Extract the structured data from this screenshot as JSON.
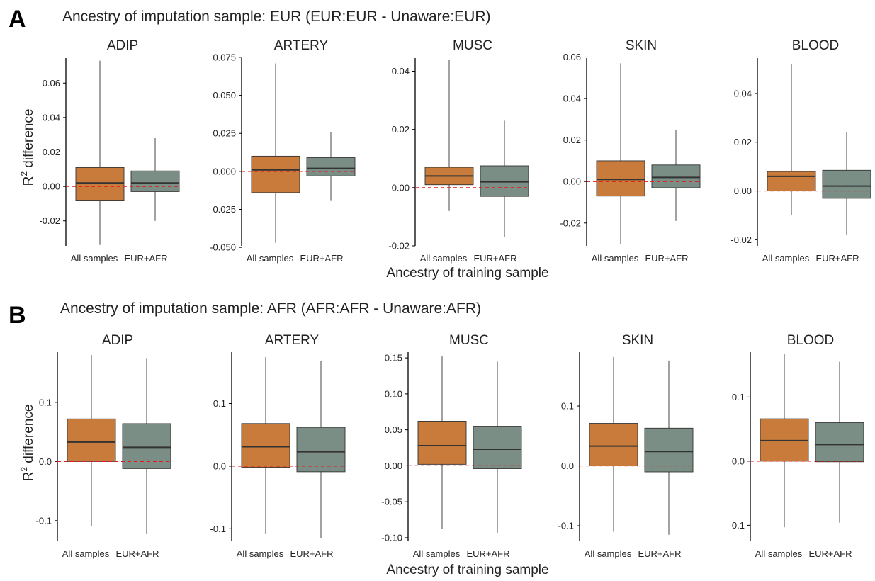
{
  "panels": [
    {
      "letter": "A",
      "title": "Ancestry of imputation sample: EUR (EUR:EUR - Unaware:EUR)",
      "ylabel_main": "R",
      "ylabel_sup": "2",
      "ylabel_rest": " difference",
      "xlabel": "Ancestry of training sample"
    },
    {
      "letter": "B",
      "title": "Ancestry of imputation sample: AFR (AFR:AFR - Unaware:AFR)",
      "ylabel_main": "R",
      "ylabel_sup": "2",
      "ylabel_rest": " difference",
      "xlabel": "Ancestry of training sample"
    }
  ],
  "colors": {
    "all_samples": "#c87b3a",
    "eur_afr": "#7a8e85",
    "median": "#333333",
    "zero_line": "#e8161a",
    "axis": "#000000",
    "text": "#222222"
  },
  "chart_data": [
    {
      "type": "box",
      "panel": "A",
      "title": "ADIP",
      "categories": [
        "All samples",
        "EUR+AFR"
      ],
      "yticks": [
        -0.02,
        0.0,
        0.02,
        0.04,
        0.06
      ],
      "tick_labels": [
        "-0.02",
        "0.00",
        "0.02",
        "0.04",
        "0.06"
      ],
      "ylim": [
        -0.0345,
        0.0745
      ],
      "boxes": [
        {
          "whisker_low": -0.034,
          "q1": -0.008,
          "median": 0.002,
          "q3": 0.011,
          "whisker_high": 0.073
        },
        {
          "whisker_low": -0.02,
          "q1": -0.003,
          "median": 0.002,
          "q3": 0.009,
          "whisker_high": 0.028
        }
      ],
      "ref_line": 0
    },
    {
      "type": "box",
      "panel": "A",
      "title": "ARTERY",
      "categories": [
        "All samples",
        "EUR+AFR"
      ],
      "yticks": [
        -0.05,
        -0.025,
        0.0,
        0.025,
        0.05,
        0.075
      ],
      "tick_labels": [
        "-0.050",
        "-0.025",
        "0.000",
        "0.025",
        "0.050",
        "0.075"
      ],
      "ylim": [
        -0.049,
        0.0745
      ],
      "boxes": [
        {
          "whisker_low": -0.047,
          "q1": -0.014,
          "median": 0.001,
          "q3": 0.01,
          "whisker_high": 0.071
        },
        {
          "whisker_low": -0.019,
          "q1": -0.003,
          "median": 0.002,
          "q3": 0.009,
          "whisker_high": 0.026
        }
      ],
      "ref_line": 0
    },
    {
      "type": "box",
      "panel": "A",
      "title": "MUSC",
      "categories": [
        "All samples",
        "EUR+AFR"
      ],
      "yticks": [
        -0.02,
        0.0,
        0.02,
        0.04
      ],
      "tick_labels": [
        "-0.02",
        "0.00",
        "0.02",
        "0.04"
      ],
      "ylim": [
        -0.02,
        0.0445
      ],
      "boxes": [
        {
          "whisker_low": -0.008,
          "q1": 0.001,
          "median": 0.004,
          "q3": 0.007,
          "whisker_high": 0.044
        },
        {
          "whisker_low": -0.017,
          "q1": -0.003,
          "median": 0.002,
          "q3": 0.0075,
          "whisker_high": 0.023
        }
      ],
      "ref_line": 0
    },
    {
      "type": "box",
      "panel": "A",
      "title": "SKIN",
      "categories": [
        "All samples",
        "EUR+AFR"
      ],
      "yticks": [
        -0.02,
        0.0,
        0.02,
        0.04,
        0.06
      ],
      "tick_labels": [
        "-0.02",
        "0.00",
        "0.02",
        "0.04",
        "0.06"
      ],
      "ylim": [
        -0.031,
        0.0595
      ],
      "boxes": [
        {
          "whisker_low": -0.03,
          "q1": -0.007,
          "median": 0.001,
          "q3": 0.01,
          "whisker_high": 0.057
        },
        {
          "whisker_low": -0.019,
          "q1": -0.003,
          "median": 0.002,
          "q3": 0.008,
          "whisker_high": 0.025
        }
      ],
      "ref_line": 0
    },
    {
      "type": "box",
      "panel": "A",
      "title": "BLOOD",
      "categories": [
        "All samples",
        "EUR+AFR"
      ],
      "yticks": [
        -0.02,
        0.0,
        0.02,
        0.04
      ],
      "tick_labels": [
        "-0.02",
        "0.00",
        "0.02",
        "0.04"
      ],
      "ylim": [
        -0.0225,
        0.0545
      ],
      "boxes": [
        {
          "whisker_low": -0.01,
          "q1": 0.0,
          "median": 0.006,
          "q3": 0.008,
          "whisker_high": 0.052
        },
        {
          "whisker_low": -0.018,
          "q1": -0.003,
          "median": 0.002,
          "q3": 0.0085,
          "whisker_high": 0.024
        }
      ],
      "ref_line": 0
    },
    {
      "type": "box",
      "panel": "B",
      "title": "ADIP",
      "categories": [
        "All samples",
        "EUR+AFR"
      ],
      "yticks": [
        -0.1,
        0.0,
        0.1
      ],
      "tick_labels": [
        "-0.1",
        "0.0",
        "0.1"
      ],
      "ylim": [
        -0.135,
        0.185
      ],
      "boxes": [
        {
          "whisker_low": -0.109,
          "q1": 0.0,
          "median": 0.033,
          "q3": 0.072,
          "whisker_high": 0.18
        },
        {
          "whisker_low": -0.122,
          "q1": -0.012,
          "median": 0.024,
          "q3": 0.064,
          "whisker_high": 0.175
        }
      ],
      "ref_line": 0
    },
    {
      "type": "box",
      "panel": "B",
      "title": "ARTERY",
      "categories": [
        "All samples",
        "EUR+AFR"
      ],
      "yticks": [
        -0.1,
        0.0,
        0.1
      ],
      "tick_labels": [
        "-0.1",
        "0.0",
        "0.1"
      ],
      "ylim": [
        -0.12,
        0.182
      ],
      "boxes": [
        {
          "whisker_low": -0.108,
          "q1": -0.002,
          "median": 0.031,
          "q3": 0.068,
          "whisker_high": 0.174
        },
        {
          "whisker_low": -0.115,
          "q1": -0.009,
          "median": 0.023,
          "q3": 0.062,
          "whisker_high": 0.168
        }
      ],
      "ref_line": 0
    },
    {
      "type": "box",
      "panel": "B",
      "title": "MUSC",
      "categories": [
        "All samples",
        "EUR+AFR"
      ],
      "yticks": [
        -0.1,
        -0.05,
        0.0,
        0.05,
        0.1,
        0.15
      ],
      "tick_labels": [
        "-0.10",
        "-0.05",
        "0.00",
        "0.05",
        "0.10",
        "0.15"
      ],
      "ylim": [
        -0.105,
        0.158
      ],
      "boxes": [
        {
          "whisker_low": -0.088,
          "q1": 0.002,
          "median": 0.028,
          "q3": 0.062,
          "whisker_high": 0.152
        },
        {
          "whisker_low": -0.093,
          "q1": -0.004,
          "median": 0.023,
          "q3": 0.055,
          "whisker_high": 0.145
        }
      ],
      "ref_line": 0
    },
    {
      "type": "box",
      "panel": "B",
      "title": "SKIN",
      "categories": [
        "All samples",
        "EUR+AFR"
      ],
      "yticks": [
        -0.1,
        0.0,
        0.1
      ],
      "tick_labels": [
        "-0.1",
        "0.0",
        "0.1"
      ],
      "ylim": [
        -0.126,
        0.19
      ],
      "boxes": [
        {
          "whisker_low": -0.11,
          "q1": 0.0,
          "median": 0.033,
          "q3": 0.071,
          "whisker_high": 0.182
        },
        {
          "whisker_low": -0.115,
          "q1": -0.01,
          "median": 0.024,
          "q3": 0.063,
          "whisker_high": 0.176
        }
      ],
      "ref_line": 0
    },
    {
      "type": "box",
      "panel": "B",
      "title": "BLOOD",
      "categories": [
        "All samples",
        "EUR+AFR"
      ],
      "yticks": [
        -0.1,
        0.0,
        0.1
      ],
      "tick_labels": [
        "-0.1",
        "0.0",
        "0.1"
      ],
      "ylim": [
        -0.125,
        0.17
      ],
      "boxes": [
        {
          "whisker_low": -0.103,
          "q1": 0.0,
          "median": 0.032,
          "q3": 0.066,
          "whisker_high": 0.167
        },
        {
          "whisker_low": -0.096,
          "q1": -0.001,
          "median": 0.026,
          "q3": 0.06,
          "whisker_high": 0.155
        }
      ],
      "ref_line": 0
    }
  ]
}
